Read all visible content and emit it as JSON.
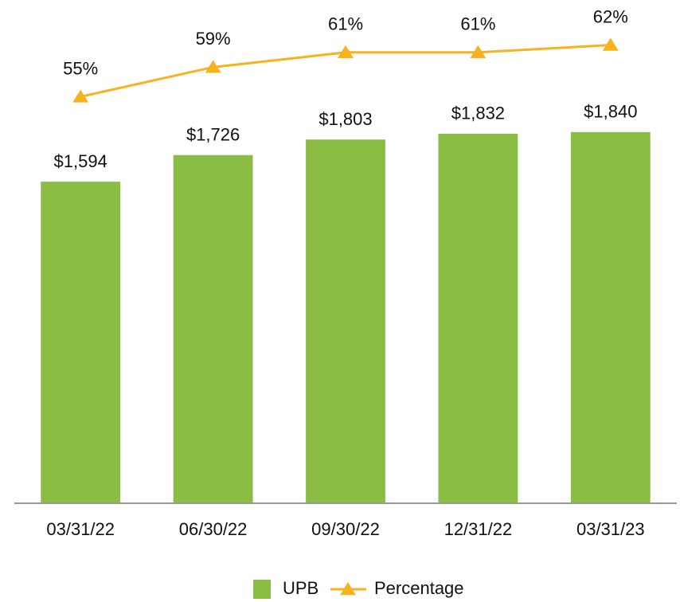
{
  "chart_data": {
    "type": "bar",
    "categories": [
      "03/31/22",
      "06/30/22",
      "09/30/22",
      "12/31/22",
      "03/31/23"
    ],
    "series": [
      {
        "name": "UPB",
        "type": "bar",
        "color": "#8bbd45",
        "values": [
          1594,
          1726,
          1803,
          1832,
          1840
        ],
        "value_labels": [
          "$1,594",
          "$1,726",
          "$1,803",
          "$1,832",
          "$1,840"
        ]
      },
      {
        "name": "Percentage",
        "type": "line",
        "axis": "y2",
        "color": "#f6b21f",
        "values": [
          55,
          59,
          61,
          61,
          62
        ],
        "value_labels": [
          "55%",
          "59%",
          "61%",
          "61%",
          "62%"
        ]
      }
    ],
    "ylim": [
      0,
      2400
    ],
    "y2lim": [
      0,
      65.5
    ],
    "legend": "bottom"
  }
}
